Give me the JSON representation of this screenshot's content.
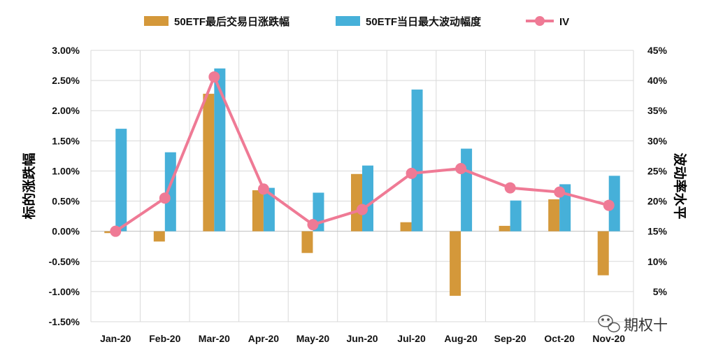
{
  "chart_data": {
    "type": "bar+line",
    "categories": [
      "Jan-20",
      "Feb-20",
      "Mar-20",
      "Apr-20",
      "May-20",
      "Jun-20",
      "Jul-20",
      "Aug-20",
      "Sep-20",
      "Oct-20",
      "Nov-20"
    ],
    "series": [
      {
        "name": "50ETF最后交易日涨跌幅",
        "type": "bar",
        "axis": "left",
        "color": "#D4983A",
        "values": [
          -0.03,
          -0.17,
          2.28,
          0.68,
          -0.36,
          0.95,
          0.15,
          -1.07,
          0.09,
          0.53,
          -0.73
        ]
      },
      {
        "name": "50ETF当日最大波动幅度",
        "type": "bar",
        "axis": "left",
        "color": "#46B0D9",
        "values": [
          1.7,
          1.31,
          2.7,
          0.72,
          0.64,
          1.09,
          2.35,
          1.37,
          0.51,
          0.78,
          0.92
        ]
      },
      {
        "name": "IV",
        "type": "line",
        "axis": "right",
        "color": "#EF7A95",
        "values": [
          15.0,
          20.5,
          40.6,
          22.0,
          16.1,
          18.6,
          24.6,
          25.4,
          22.2,
          21.5,
          19.3
        ]
      }
    ],
    "left_axis": {
      "title": "标的涨跌幅",
      "ylim": [
        -1.5,
        3.0
      ],
      "ticks": [
        -1.5,
        -1.0,
        -0.5,
        0.0,
        0.5,
        1.0,
        1.5,
        2.0,
        2.5,
        3.0
      ],
      "tick_labels": [
        "-1.50%",
        "-1.00%",
        "-0.50%",
        "0.00%",
        "0.50%",
        "1.00%",
        "1.50%",
        "2.00%",
        "2.50%",
        "3.00%"
      ]
    },
    "right_axis": {
      "title": "波动率水平",
      "ylim": [
        0,
        45
      ],
      "ticks": [
        5,
        10,
        15,
        20,
        25,
        30,
        35,
        40,
        45
      ],
      "tick_labels": [
        "5%",
        "10%",
        "15%",
        "20%",
        "25%",
        "30%",
        "35%",
        "40%",
        "45%"
      ]
    },
    "grid": true,
    "legend_position": "top"
  },
  "watermark": {
    "text": "期权十"
  }
}
